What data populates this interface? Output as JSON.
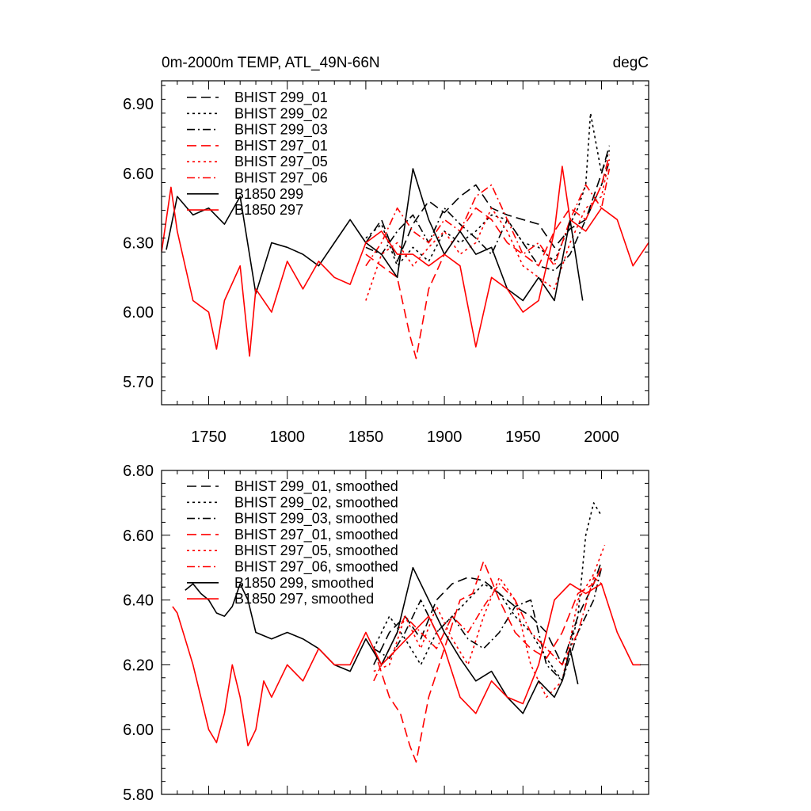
{
  "chart_data": [
    {
      "type": "line",
      "title": "0m-2000m TEMP, ATL_49N-66N",
      "units": "degC",
      "xlim": [
        1720,
        2030
      ],
      "ylim": [
        5.6,
        7.0
      ],
      "x_ticks": [
        1750,
        1800,
        1850,
        1900,
        1950,
        2000
      ],
      "x_tick_labels": [
        "1750",
        "1800",
        "1850",
        "1900",
        "1950",
        "2000"
      ],
      "y_ticks": [
        5.7,
        6.0,
        6.3,
        6.6,
        6.9
      ],
      "y_tick_labels": [
        "5.70",
        "6.00",
        "6.30",
        "6.60",
        "6.90"
      ],
      "legend_position": "top-left",
      "legend": [
        {
          "label": "BHIST 299_01",
          "color": "#000000",
          "style": "dash"
        },
        {
          "label": "BHIST 299_02",
          "color": "#000000",
          "style": "dot"
        },
        {
          "label": "BHIST 299_03",
          "color": "#000000",
          "style": "dashdot"
        },
        {
          "label": "BHIST 297_01",
          "color": "#ff0000",
          "style": "dash"
        },
        {
          "label": "BHIST 297_05",
          "color": "#ff0000",
          "style": "dot"
        },
        {
          "label": "BHIST 297_06",
          "color": "#ff0000",
          "style": "dashdot"
        },
        {
          "label": "B1850 299",
          "color": "#000000",
          "style": "solid"
        },
        {
          "label": "B1850 297",
          "color": "#ff0000",
          "style": "solid"
        }
      ],
      "series": [
        {
          "name": "BHIST 299_01",
          "x": [
            1850,
            1860,
            1870,
            1880,
            1890,
            1900,
            1910,
            1920,
            1930,
            1940,
            1950,
            1960,
            1970,
            1980,
            1990,
            2000,
            2005
          ],
          "values": [
            6.3,
            6.4,
            6.22,
            6.38,
            6.48,
            6.43,
            6.5,
            6.55,
            6.45,
            6.42,
            6.4,
            6.38,
            6.28,
            6.36,
            6.4,
            6.6,
            6.72
          ]
        },
        {
          "name": "BHIST 299_02",
          "x": [
            1850,
            1860,
            1870,
            1880,
            1890,
            1900,
            1910,
            1920,
            1930,
            1940,
            1950,
            1960,
            1970,
            1980,
            1985,
            1990,
            1993,
            2000,
            2005
          ],
          "values": [
            6.32,
            6.38,
            6.2,
            6.28,
            6.22,
            6.35,
            6.3,
            6.35,
            6.42,
            6.4,
            6.3,
            6.28,
            6.22,
            6.38,
            6.45,
            6.55,
            6.86,
            6.6,
            6.7
          ]
        },
        {
          "name": "BHIST 299_03",
          "x": [
            1850,
            1860,
            1870,
            1880,
            1890,
            1900,
            1910,
            1920,
            1930,
            1940,
            1950,
            1960,
            1970,
            1980,
            1990,
            2000,
            2005
          ],
          "values": [
            6.28,
            6.25,
            6.35,
            6.42,
            6.3,
            6.45,
            6.38,
            6.32,
            6.25,
            6.4,
            6.3,
            6.2,
            6.18,
            6.25,
            6.4,
            6.55,
            6.65
          ]
        },
        {
          "name": "BHIST 297_01",
          "x": [
            1850,
            1860,
            1870,
            1878,
            1882,
            1890,
            1900,
            1910,
            1920,
            1930,
            1940,
            1950,
            1960,
            1970,
            1980,
            1990,
            2000,
            2005
          ],
          "values": [
            6.25,
            6.2,
            6.15,
            5.9,
            5.8,
            6.1,
            6.25,
            6.35,
            6.45,
            6.4,
            6.3,
            6.25,
            6.2,
            6.35,
            6.45,
            6.4,
            6.55,
            6.68
          ]
        },
        {
          "name": "BHIST 297_05",
          "x": [
            1850,
            1860,
            1870,
            1880,
            1890,
            1900,
            1910,
            1920,
            1930,
            1940,
            1950,
            1960,
            1970,
            1980,
            1990,
            2000,
            2005
          ],
          "values": [
            6.05,
            6.25,
            6.3,
            6.2,
            6.28,
            6.35,
            6.25,
            6.3,
            6.45,
            6.35,
            6.2,
            6.15,
            6.1,
            6.3,
            6.45,
            6.5,
            6.66
          ]
        },
        {
          "name": "BHIST 297_06",
          "x": [
            1850,
            1860,
            1870,
            1880,
            1890,
            1900,
            1910,
            1920,
            1930,
            1940,
            1950,
            1960,
            1970,
            1980,
            1990,
            2000,
            2005
          ],
          "values": [
            6.2,
            6.3,
            6.45,
            6.35,
            6.3,
            6.4,
            6.35,
            6.5,
            6.55,
            6.4,
            6.25,
            6.3,
            6.2,
            6.4,
            6.55,
            6.45,
            6.62
          ]
        },
        {
          "name": "B1850 299",
          "x": [
            1723,
            1730,
            1740,
            1750,
            1760,
            1770,
            1780,
            1790,
            1800,
            1810,
            1820,
            1830,
            1840,
            1850,
            1860,
            1870,
            1880,
            1890,
            1900,
            1910,
            1920,
            1930,
            1940,
            1950,
            1960,
            1970,
            1980,
            1988
          ],
          "values": [
            6.27,
            6.5,
            6.42,
            6.45,
            6.38,
            6.5,
            6.08,
            6.3,
            6.28,
            6.25,
            6.2,
            6.3,
            6.4,
            6.3,
            6.25,
            6.15,
            6.62,
            6.4,
            6.25,
            6.35,
            6.25,
            6.28,
            6.1,
            6.05,
            6.15,
            6.05,
            6.4,
            6.05
          ]
        },
        {
          "name": "B1850 297",
          "x": [
            1720,
            1726,
            1730,
            1740,
            1750,
            1755,
            1760,
            1770,
            1776,
            1780,
            1790,
            1800,
            1810,
            1820,
            1830,
            1840,
            1850,
            1860,
            1870,
            1880,
            1890,
            1900,
            1910,
            1920,
            1930,
            1940,
            1950,
            1960,
            1970,
            1975,
            1980,
            1990,
            2000,
            2010,
            2020,
            2030
          ],
          "values": [
            6.26,
            6.54,
            6.35,
            6.05,
            6.0,
            5.84,
            6.05,
            6.2,
            5.81,
            6.1,
            6.0,
            6.22,
            6.1,
            6.22,
            6.15,
            6.12,
            6.3,
            6.35,
            6.25,
            6.25,
            6.2,
            6.25,
            6.2,
            5.85,
            6.15,
            6.1,
            6.0,
            6.05,
            6.35,
            6.63,
            6.4,
            6.35,
            6.45,
            6.4,
            6.2,
            6.3
          ]
        }
      ]
    },
    {
      "type": "line",
      "xlim": [
        1720,
        2030
      ],
      "ylim": [
        5.8,
        6.8
      ],
      "x_ticks": [
        1750,
        1800,
        1850,
        1900,
        1950,
        2000
      ],
      "y_ticks": [
        5.8,
        6.0,
        6.2,
        6.4,
        6.6,
        6.8
      ],
      "y_tick_labels": [
        "5.80",
        "6.00",
        "6.20",
        "6.40",
        "6.60",
        "6.80"
      ],
      "legend_position": "top-left",
      "legend": [
        {
          "label": "BHIST 299_01, smoothed",
          "color": "#000000",
          "style": "dash"
        },
        {
          "label": "BHIST 299_02, smoothed",
          "color": "#000000",
          "style": "dot"
        },
        {
          "label": "BHIST 299_03, smoothed",
          "color": "#000000",
          "style": "dashdot"
        },
        {
          "label": "BHIST 297_01, smoothed",
          "color": "#ff0000",
          "style": "dash"
        },
        {
          "label": "BHIST 297_05, smoothed",
          "color": "#ff0000",
          "style": "dot"
        },
        {
          "label": "BHIST 297_06, smoothed",
          "color": "#ff0000",
          "style": "dashdot"
        },
        {
          "label": "B1850 299, smoothed",
          "color": "#000000",
          "style": "solid"
        },
        {
          "label": "B1850 297, smoothed",
          "color": "#ff0000",
          "style": "solid"
        }
      ],
      "series": [
        {
          "name": "BHIST 299_01, smoothed",
          "x": [
            1855,
            1865,
            1875,
            1885,
            1895,
            1905,
            1915,
            1925,
            1935,
            1945,
            1955,
            1965,
            1975,
            1985,
            1995,
            2000
          ],
          "values": [
            6.2,
            6.3,
            6.35,
            6.28,
            6.4,
            6.45,
            6.47,
            6.46,
            6.42,
            6.38,
            6.35,
            6.3,
            6.2,
            6.35,
            6.45,
            6.52
          ]
        },
        {
          "name": "BHIST 299_02, smoothed",
          "x": [
            1855,
            1865,
            1875,
            1885,
            1895,
            1905,
            1915,
            1925,
            1935,
            1945,
            1955,
            1965,
            1975,
            1985,
            1990,
            1995,
            2000
          ],
          "values": [
            6.25,
            6.35,
            6.28,
            6.2,
            6.3,
            6.35,
            6.4,
            6.45,
            6.42,
            6.35,
            6.3,
            6.22,
            6.15,
            6.35,
            6.6,
            6.7,
            6.66
          ]
        },
        {
          "name": "BHIST 299_03, smoothed",
          "x": [
            1855,
            1865,
            1875,
            1885,
            1895,
            1905,
            1915,
            1925,
            1935,
            1945,
            1955,
            1965,
            1975,
            1985,
            1995,
            2000
          ],
          "values": [
            6.25,
            6.22,
            6.3,
            6.4,
            6.3,
            6.35,
            6.28,
            6.25,
            6.3,
            6.38,
            6.4,
            6.2,
            6.15,
            6.3,
            6.4,
            6.5
          ]
        },
        {
          "name": "BHIST 297_01, smoothed",
          "x": [
            1855,
            1865,
            1872,
            1878,
            1882,
            1890,
            1900,
            1910,
            1918,
            1925,
            1935,
            1945,
            1955,
            1965,
            1975,
            1985,
            1995,
            2000
          ],
          "values": [
            6.25,
            6.1,
            6.05,
            5.95,
            5.9,
            6.1,
            6.25,
            6.4,
            6.42,
            6.52,
            6.4,
            6.3,
            6.25,
            6.22,
            6.3,
            6.42,
            6.45,
            6.5
          ]
        },
        {
          "name": "BHIST 297_05, smoothed",
          "x": [
            1855,
            1865,
            1875,
            1885,
            1895,
            1905,
            1915,
            1925,
            1935,
            1945,
            1955,
            1965,
            1975,
            1985,
            1995,
            2002
          ],
          "values": [
            6.18,
            6.2,
            6.35,
            6.25,
            6.38,
            6.28,
            6.2,
            6.35,
            6.47,
            6.4,
            6.2,
            6.1,
            6.15,
            6.4,
            6.48,
            6.57
          ]
        },
        {
          "name": "BHIST 297_06, smoothed",
          "x": [
            1855,
            1865,
            1875,
            1885,
            1895,
            1905,
            1915,
            1925,
            1935,
            1945,
            1955,
            1965,
            1975,
            1985,
            1995,
            2000
          ],
          "values": [
            6.15,
            6.25,
            6.35,
            6.3,
            6.25,
            6.35,
            6.3,
            6.38,
            6.45,
            6.4,
            6.3,
            6.25,
            6.2,
            6.3,
            6.47,
            6.45
          ]
        },
        {
          "name": "B1850 299, smoothed",
          "x": [
            1735,
            1740,
            1745,
            1750,
            1755,
            1760,
            1765,
            1770,
            1775,
            1780,
            1790,
            1800,
            1810,
            1820,
            1830,
            1840,
            1850,
            1860,
            1870,
            1880,
            1890,
            1900,
            1910,
            1920,
            1930,
            1940,
            1950,
            1960,
            1970,
            1975,
            1980,
            1985
          ],
          "values": [
            6.43,
            6.45,
            6.42,
            6.4,
            6.36,
            6.35,
            6.38,
            6.45,
            6.4,
            6.3,
            6.28,
            6.3,
            6.28,
            6.25,
            6.2,
            6.18,
            6.28,
            6.2,
            6.3,
            6.5,
            6.4,
            6.3,
            6.22,
            6.15,
            6.18,
            6.1,
            6.05,
            6.15,
            6.1,
            6.15,
            6.25,
            6.14
          ]
        },
        {
          "name": "B1850 297, smoothed",
          "x": [
            1727,
            1730,
            1735,
            1740,
            1745,
            1750,
            1755,
            1760,
            1765,
            1770,
            1775,
            1780,
            1785,
            1790,
            1795,
            1800,
            1810,
            1820,
            1830,
            1840,
            1850,
            1860,
            1870,
            1880,
            1890,
            1900,
            1910,
            1920,
            1930,
            1940,
            1950,
            1960,
            1970,
            1980,
            1990,
            2000,
            2010,
            2020,
            2025
          ],
          "values": [
            6.38,
            6.36,
            6.28,
            6.2,
            6.1,
            6.0,
            5.96,
            6.05,
            6.2,
            6.1,
            5.95,
            6.0,
            6.15,
            6.1,
            6.15,
            6.2,
            6.15,
            6.25,
            6.2,
            6.2,
            6.3,
            6.2,
            6.25,
            6.3,
            6.35,
            6.25,
            6.1,
            6.05,
            6.15,
            6.1,
            6.08,
            6.2,
            6.4,
            6.45,
            6.42,
            6.45,
            6.3,
            6.2,
            6.2
          ]
        }
      ]
    }
  ]
}
